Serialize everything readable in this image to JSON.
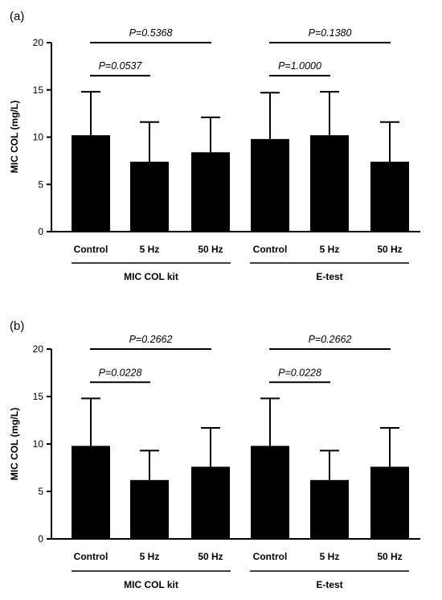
{
  "chart_data": [
    {
      "panel_label": "(a)",
      "type": "bar",
      "ylabel": "MIC COL (mg/L)",
      "ylim": [
        0,
        20
      ],
      "yticks": [
        0,
        5,
        10,
        15,
        20
      ],
      "categories": [
        "Control",
        "5 Hz",
        "50 Hz",
        "Control",
        "5 Hz",
        "50 Hz"
      ],
      "groups": [
        {
          "label": "MIC COL kit",
          "categories": [
            0,
            1,
            2
          ]
        },
        {
          "label": "E-test",
          "categories": [
            3,
            4,
            5
          ]
        }
      ],
      "values": [
        10.2,
        7.4,
        8.4,
        9.8,
        10.2,
        7.4
      ],
      "error_upper": [
        4.6,
        4.2,
        3.7,
        4.9,
        4.6,
        4.2
      ],
      "comparisons": [
        {
          "from": 0,
          "to": 2,
          "label": "P=0.5368",
          "level": 20
        },
        {
          "from": 0,
          "to": 1,
          "label": "P=0.0537",
          "level": 16.5
        },
        {
          "from": 3,
          "to": 5,
          "label": "P=0.1380",
          "level": 20
        },
        {
          "from": 3,
          "to": 4,
          "label": "P=1.0000",
          "level": 16.5
        }
      ],
      "bar_color": "#000000",
      "grid": false
    },
    {
      "panel_label": "(b)",
      "type": "bar",
      "ylabel": "MIC COL (mg/L)",
      "ylim": [
        0,
        20
      ],
      "yticks": [
        0,
        5,
        10,
        15,
        20
      ],
      "categories": [
        "Control",
        "5 Hz",
        "50 Hz",
        "Control",
        "5 Hz",
        "50 Hz"
      ],
      "groups": [
        {
          "label": "MIC COL kit",
          "categories": [
            0,
            1,
            2
          ]
        },
        {
          "label": "E-test",
          "categories": [
            3,
            4,
            5
          ]
        }
      ],
      "values": [
        9.8,
        6.2,
        7.6,
        9.8,
        6.2,
        7.6
      ],
      "error_upper": [
        5.0,
        3.1,
        4.1,
        5.0,
        3.1,
        4.1
      ],
      "comparisons": [
        {
          "from": 0,
          "to": 2,
          "label": "P=0.2662",
          "level": 20
        },
        {
          "from": 0,
          "to": 1,
          "label": "P=0.0228",
          "level": 16.5
        },
        {
          "from": 3,
          "to": 5,
          "label": "P=0.2662",
          "level": 20
        },
        {
          "from": 3,
          "to": 4,
          "label": "P=0.0228",
          "level": 16.5
        }
      ],
      "bar_color": "#000000",
      "grid": false
    }
  ]
}
